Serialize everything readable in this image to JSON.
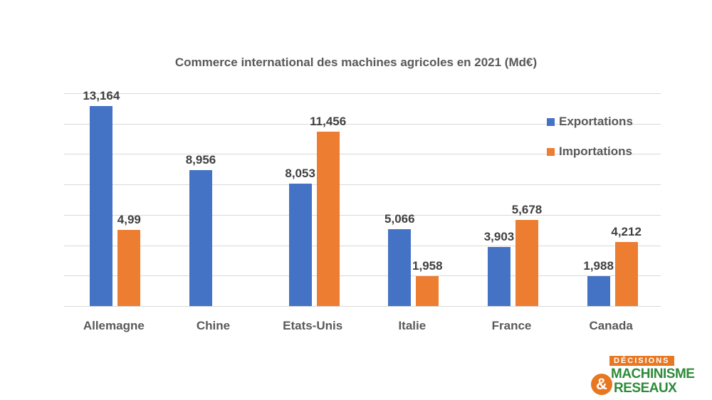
{
  "chart_data": {
    "type": "bar",
    "title": "Commerce international des machines agricoles en 2021 (Md€)",
    "categories": [
      "Allemagne",
      "Chine",
      "Etats-Unis",
      "Italie",
      "France",
      "Canada"
    ],
    "series": [
      {
        "name": "Exportations",
        "color": "#4472c4",
        "values": [
          13.164,
          8.956,
          8.053,
          5.066,
          3.903,
          1.988
        ],
        "labels": [
          "13,164",
          "8,956",
          "8,053",
          "5,066",
          "3,903",
          "1,988"
        ]
      },
      {
        "name": "Importations",
        "color": "#ed7d31",
        "values": [
          4.99,
          null,
          11.456,
          1.958,
          5.678,
          4.212
        ],
        "labels": [
          "4,99",
          "",
          "11,456",
          "1,958",
          "5,678",
          "4,212"
        ]
      }
    ],
    "xlabel": "",
    "ylabel": "",
    "ylim": [
      0,
      14
    ],
    "grid": true,
    "gridline_step": 2,
    "legend_position": "top-right"
  },
  "logo": {
    "top": "DÉCISIONS",
    "line1": "MACHINISME",
    "line2": "RESEAUX",
    "amp": "&"
  }
}
